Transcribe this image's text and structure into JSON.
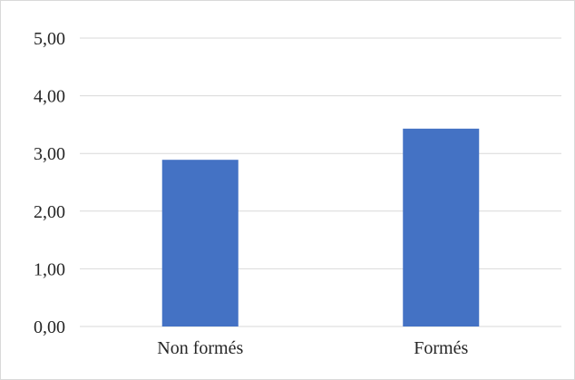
{
  "chart_data": {
    "type": "bar",
    "categories": [
      "Non formés",
      "Formés"
    ],
    "values": [
      2.89,
      3.43
    ],
    "title": "",
    "xlabel": "",
    "ylabel": "",
    "ylim": [
      0,
      5
    ],
    "y_ticks": [
      "0,00",
      "1,00",
      "2,00",
      "3,00",
      "4,00",
      "5,00"
    ],
    "grid": true,
    "legend": "none",
    "colors": {
      "bar": "#4472c4",
      "grid": "#d9d9d9",
      "text": "#262626"
    }
  }
}
